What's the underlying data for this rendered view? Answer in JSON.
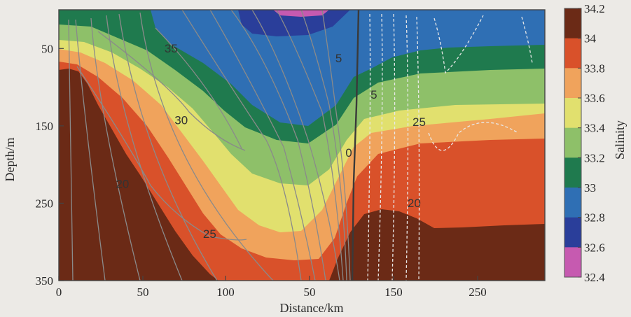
{
  "chart_data": {
    "type": "heatmap",
    "title": "",
    "xlabel": "Distance/km",
    "ylabel": "Depth/m",
    "colorbar_label": "Salinity",
    "x_tick_labels": [
      "0",
      "50",
      "100",
      "50",
      "150",
      "250"
    ],
    "y_ticks": [
      50,
      150,
      250,
      350
    ],
    "ylim": [
      350,
      0
    ],
    "colorbar_ticks": [
      "34.2",
      "34",
      "33.8",
      "33.6",
      "33.4",
      "33.2",
      "33",
      "32.8",
      "32.6",
      "32.4"
    ],
    "colorbar_colors": [
      "#6b2a16",
      "#d9512a",
      "#f0a35c",
      "#e1e06e",
      "#8ec069",
      "#1f7a4e",
      "#2f6fb4",
      "#2a3e9a",
      "#c65ab0"
    ],
    "contour_labels": [
      {
        "text": "35",
        "x_km": 67,
        "depth_m": 55
      },
      {
        "text": "30",
        "x_km": 73,
        "depth_m": 148
      },
      {
        "text": "25",
        "x_km": 90,
        "depth_m": 295
      },
      {
        "text": "20",
        "x_km": 38,
        "depth_m": 230
      },
      {
        "text": "5",
        "x_km": 167,
        "depth_m": 68
      },
      {
        "text": "0",
        "x_km": 173,
        "depth_m": 190
      },
      {
        "text": "5",
        "x_km": 188,
        "depth_m": 115
      },
      {
        "text": "25",
        "x_km": 215,
        "depth_m": 150
      },
      {
        "text": "20",
        "x_km": 212,
        "depth_m": 255
      }
    ]
  }
}
